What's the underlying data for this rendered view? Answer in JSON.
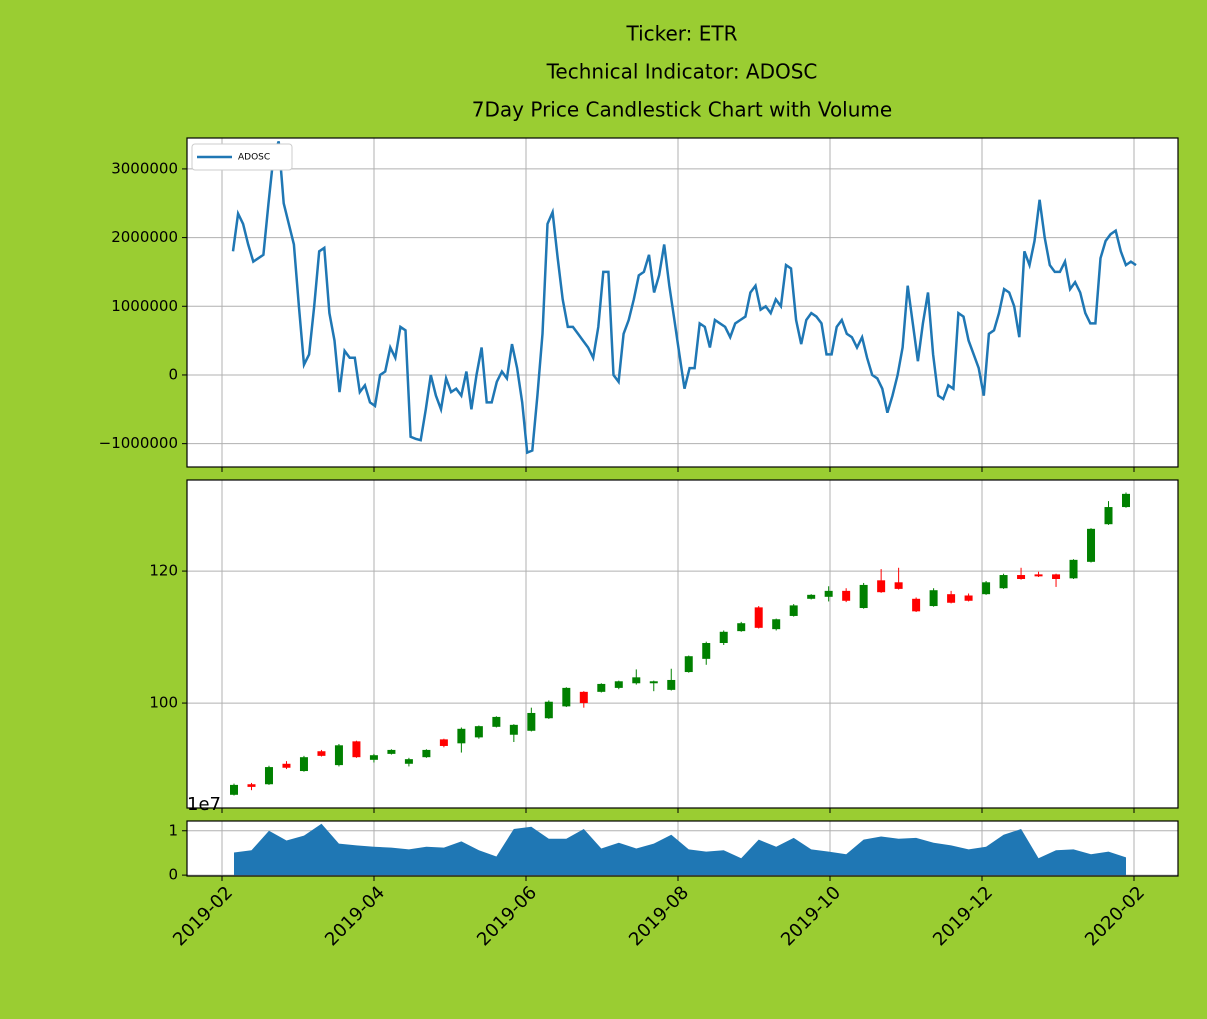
{
  "chart_data": [
    {
      "type": "line",
      "title": [
        "Ticker: ETR",
        "Technical Indicator: ADOSC",
        "7Day Price Candlestick Chart with Volume"
      ],
      "series": [
        {
          "name": "ADOSC",
          "color": "#1f77b4",
          "values": [
            1800000,
            2350000,
            2200000,
            1900000,
            1650000,
            1700000,
            1750000,
            2500000,
            3200000,
            3400000,
            2500000,
            2200000,
            1900000,
            1000000,
            150000,
            300000,
            1000000,
            1800000,
            1850000,
            900000,
            500000,
            -250000,
            350000,
            250000,
            250000,
            -250000,
            -150000,
            -400000,
            -450000,
            0,
            50000,
            400000,
            250000,
            700000,
            650000,
            -900000,
            -930000,
            -950000,
            -500000,
            0,
            -300000,
            -500000,
            -50000,
            -250000,
            -200000,
            -300000,
            50000,
            -500000,
            0,
            400000,
            -400000,
            -400000,
            -100000,
            50000,
            -50000,
            450000,
            100000,
            -400000,
            -1130000,
            -1100000,
            -300000,
            600000,
            2200000,
            2370000,
            1700000,
            1100000,
            700000,
            700000,
            600000,
            500000,
            400000,
            250000,
            700000,
            1500000,
            1500000,
            0,
            -100000,
            600000,
            800000,
            1100000,
            1450000,
            1500000,
            1750000,
            1200000,
            1450000,
            1900000,
            1300000,
            800000,
            300000,
            -200000,
            100000,
            100000,
            750000,
            700000,
            400000,
            800000,
            750000,
            700000,
            550000,
            750000,
            800000,
            850000,
            1200000,
            1300000,
            950000,
            1000000,
            900000,
            1100000,
            1000000,
            1600000,
            1550000,
            800000,
            450000,
            800000,
            900000,
            850000,
            750000,
            300000,
            300000,
            700000,
            800000,
            600000,
            550000,
            400000,
            550000,
            250000,
            0,
            -50000,
            -200000,
            -550000,
            -300000,
            0,
            400000,
            1300000,
            750000,
            200000,
            750000,
            1200000,
            300000,
            -300000,
            -350000,
            -150000,
            -200000,
            900000,
            850000,
            500000,
            300000,
            100000,
            -300000,
            600000,
            650000,
            900000,
            1250000,
            1200000,
            1000000,
            550000,
            1800000,
            1600000,
            1950000,
            2550000,
            2000000,
            1600000,
            1500000,
            1500000,
            1650000,
            1250000,
            1350000,
            1200000,
            900000,
            750000,
            750000,
            1700000,
            1950000,
            2050000,
            2100000,
            1800000,
            1600000,
            1650000,
            1600000
          ]
        }
      ],
      "ylim": [
        -1340000,
        3450000
      ],
      "yticks": [
        {
          "value": -1000000,
          "label": "−1000000"
        },
        0,
        1000000,
        2000000,
        3000000
      ],
      "grid": true,
      "legend": "upper left"
    },
    {
      "type": "candlestick",
      "up_color": "green",
      "down_color": "red",
      "open": [
        86.1,
        87.7,
        87.7,
        90.8,
        89.7,
        92.7,
        90.6,
        94.2,
        91.4,
        92.3,
        90.8,
        91.8,
        94.5,
        93.9,
        94.8,
        96.4,
        95.2,
        95.8,
        97.7,
        99.5,
        101.7,
        101.7,
        102.3,
        103.0,
        103.0,
        102.0,
        104.7,
        106.7,
        109.1,
        110.9,
        114.5,
        111.2,
        113.2,
        115.8,
        116.1,
        117.0,
        114.4,
        118.6,
        118.3,
        115.8,
        114.7,
        116.5,
        116.3,
        116.5,
        117.4,
        119.4,
        119.5,
        119.5,
        118.9,
        121.4,
        127.1,
        129.7
      ],
      "high": [
        87.8,
        87.9,
        90.5,
        91.2,
        92.0,
        92.9,
        93.8,
        94.3,
        92.3,
        93.0,
        91.7,
        93.0,
        94.6,
        96.3,
        96.6,
        98.0,
        96.8,
        99.3,
        100.4,
        102.4,
        101.8,
        103.0,
        103.4,
        105.1,
        103.4,
        105.2,
        107.2,
        109.3,
        111.0,
        112.3,
        114.7,
        112.8,
        115.0,
        116.5,
        117.7,
        117.4,
        118.2,
        120.3,
        120.5,
        116.0,
        117.4,
        117.0,
        116.6,
        118.5,
        119.6,
        120.5,
        119.9,
        119.6,
        121.8,
        126.5,
        130.6,
        131.9
      ],
      "low": [
        86.0,
        86.8,
        87.6,
        90.0,
        89.6,
        91.9,
        90.4,
        91.7,
        91.0,
        92.2,
        90.4,
        91.7,
        93.3,
        92.5,
        94.6,
        96.3,
        94.1,
        95.7,
        97.6,
        99.4,
        99.3,
        101.6,
        102.1,
        102.8,
        101.8,
        101.9,
        104.6,
        105.8,
        108.8,
        110.8,
        111.3,
        111.0,
        113.1,
        115.7,
        115.4,
        115.3,
        114.3,
        116.7,
        117.2,
        113.8,
        114.6,
        115.1,
        115.4,
        116.4,
        117.3,
        118.7,
        119.1,
        117.6,
        118.8,
        121.3,
        127.0,
        129.6
      ],
      "close": [
        87.6,
        87.3,
        90.3,
        90.2,
        91.8,
        92.0,
        93.6,
        91.8,
        92.1,
        92.9,
        91.5,
        92.9,
        93.5,
        96.1,
        96.5,
        97.9,
        96.7,
        98.5,
        100.2,
        102.3,
        100.0,
        102.9,
        103.3,
        103.9,
        103.3,
        103.5,
        107.1,
        109.1,
        110.8,
        112.1,
        111.4,
        112.7,
        114.8,
        116.4,
        117.0,
        115.5,
        117.9,
        116.8,
        117.3,
        113.9,
        117.1,
        115.2,
        115.5,
        118.3,
        119.4,
        118.8,
        119.2,
        118.8,
        121.7,
        126.4,
        129.7,
        131.7
      ],
      "ylim": [
        84.1,
        133.8
      ],
      "yticks": [
        100,
        120
      ],
      "grid": true
    },
    {
      "type": "area",
      "color": "#1f77b4",
      "offset_label": "1e7",
      "values": [
        5100000,
        5600000,
        10000000,
        7800000,
        8900000,
        11600000,
        7100000,
        6700000,
        6400000,
        6200000,
        5800000,
        6400000,
        6200000,
        7600000,
        5600000,
        4200000,
        10400000,
        10900000,
        8200000,
        8200000,
        10400000,
        6000000,
        7300000,
        6000000,
        7100000,
        9100000,
        5800000,
        5300000,
        5600000,
        3800000,
        8000000,
        6400000,
        8400000,
        5800000,
        5300000,
        4700000,
        8000000,
        8700000,
        8200000,
        8400000,
        7300000,
        6700000,
        5800000,
        6400000,
        9100000,
        10400000,
        3800000,
        5600000,
        5800000,
        4700000,
        5300000,
        4000000
      ],
      "ylim": [
        -200000,
        12200000
      ],
      "yticks": [
        0,
        {
          "value": 10000000,
          "label": "1"
        }
      ],
      "xticks": [
        "2019-02",
        "2019-04",
        "2019-06",
        "2019-08",
        "2019-10",
        "2019-12",
        "2020-02"
      ],
      "grid": true
    }
  ]
}
